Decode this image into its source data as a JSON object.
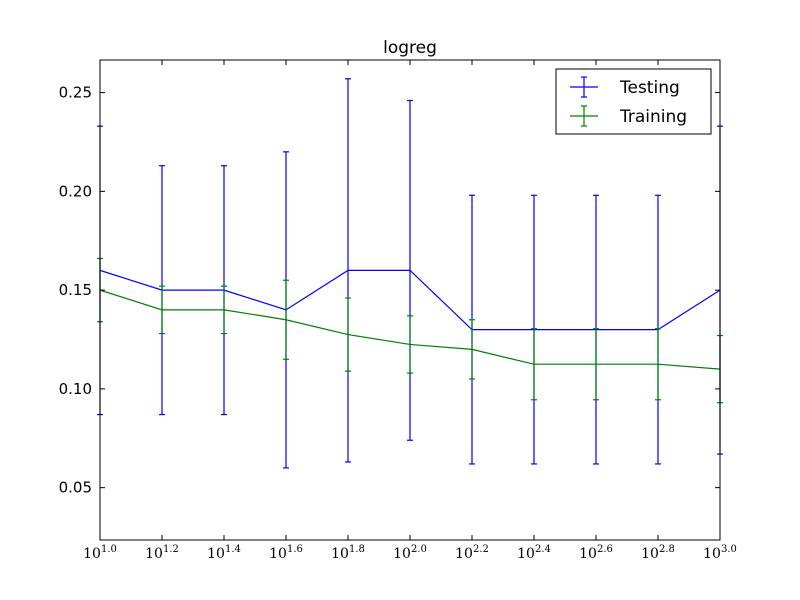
{
  "chart_data": {
    "type": "line",
    "title": "logreg",
    "x_scale": "log",
    "x_base": 10,
    "xlim": [
      10,
      1000
    ],
    "ylim": [
      0.0235,
      0.2665
    ],
    "x": [
      10,
      15.85,
      25.12,
      39.81,
      63.1,
      100,
      158.49,
      251.19,
      398.11,
      630.96,
      1000
    ],
    "x_ticks": [
      {
        "base": "10",
        "exp": "1.0"
      },
      {
        "base": "10",
        "exp": "1.2"
      },
      {
        "base": "10",
        "exp": "1.4"
      },
      {
        "base": "10",
        "exp": "1.6"
      },
      {
        "base": "10",
        "exp": "1.8"
      },
      {
        "base": "10",
        "exp": "2.0"
      },
      {
        "base": "10",
        "exp": "2.2"
      },
      {
        "base": "10",
        "exp": "2.4"
      },
      {
        "base": "10",
        "exp": "2.6"
      },
      {
        "base": "10",
        "exp": "2.8"
      },
      {
        "base": "10",
        "exp": "3.0"
      }
    ],
    "y_ticks": [
      0.05,
      0.1,
      0.15,
      0.2,
      0.25
    ],
    "y_tick_labels": [
      "0.05",
      "0.10",
      "0.15",
      "0.20",
      "0.25"
    ],
    "grid": false,
    "legend_position": "top-right",
    "series": [
      {
        "name": "Testing",
        "color": "#0000ff",
        "values": [
          0.16,
          0.15,
          0.15,
          0.14,
          0.16,
          0.16,
          0.13,
          0.13,
          0.13,
          0.13,
          0.15
        ],
        "errors": [
          0.073,
          0.063,
          0.063,
          0.08,
          0.097,
          0.086,
          0.068,
          0.068,
          0.068,
          0.068,
          0.083
        ]
      },
      {
        "name": "Training",
        "color": "#008000",
        "values": [
          0.15,
          0.14,
          0.14,
          0.135,
          0.1275,
          0.1225,
          0.12,
          0.1125,
          0.1125,
          0.1125,
          0.11
        ],
        "errors": [
          0.016,
          0.012,
          0.012,
          0.02,
          0.0185,
          0.0145,
          0.015,
          0.018,
          0.018,
          0.018,
          0.017
        ]
      }
    ]
  }
}
